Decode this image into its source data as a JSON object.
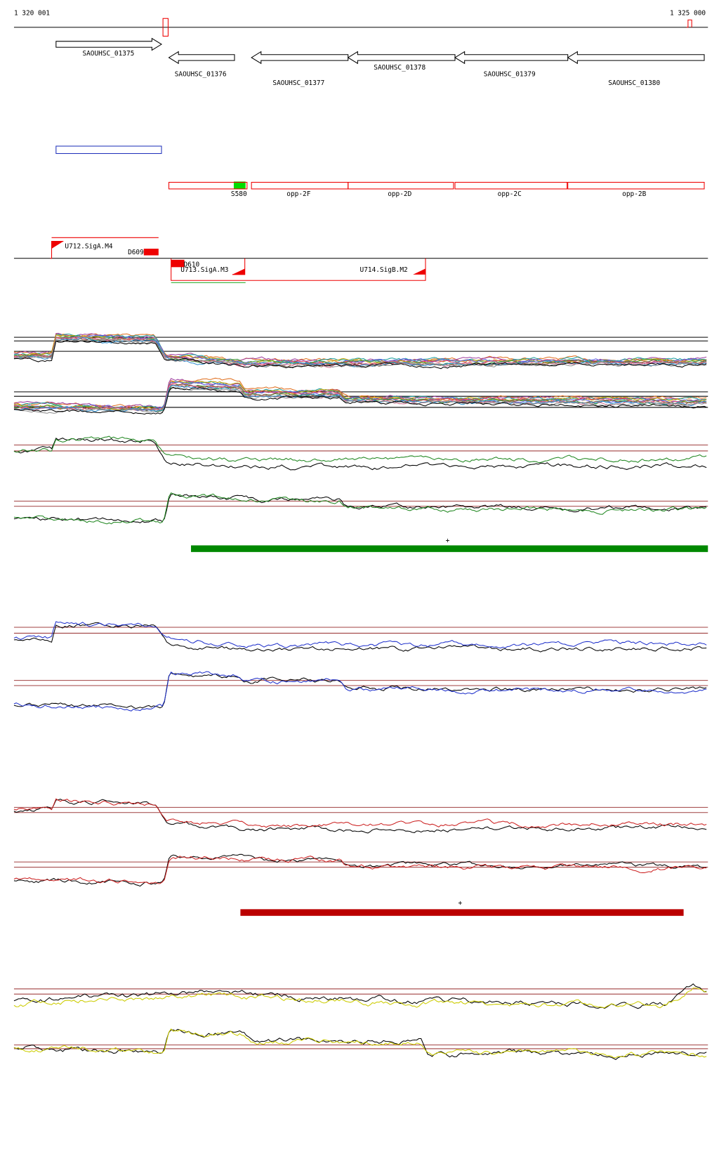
{
  "ruler": {
    "start": "1 320 001",
    "end": "1 325 000"
  },
  "genes": [
    {
      "label": "SAOUHSC_01375"
    },
    {
      "label": "SAOUHSC_01376"
    },
    {
      "label": "SAOUHSC_01377"
    },
    {
      "label": "SAOUHSC_01378"
    },
    {
      "label": "SAOUHSC_01379"
    },
    {
      "label": "SAOUHSC_01380"
    }
  ],
  "features": [
    "S580",
    "opp-2F",
    "opp-2D",
    "opp-2C",
    "opp-2B"
  ],
  "transcription_units": [
    "U712.SigA.M4",
    "D609",
    "D610",
    "U713.SigA.M3",
    "U714.SigB.M2"
  ],
  "segment_marks": [
    "+",
    "+"
  ]
}
